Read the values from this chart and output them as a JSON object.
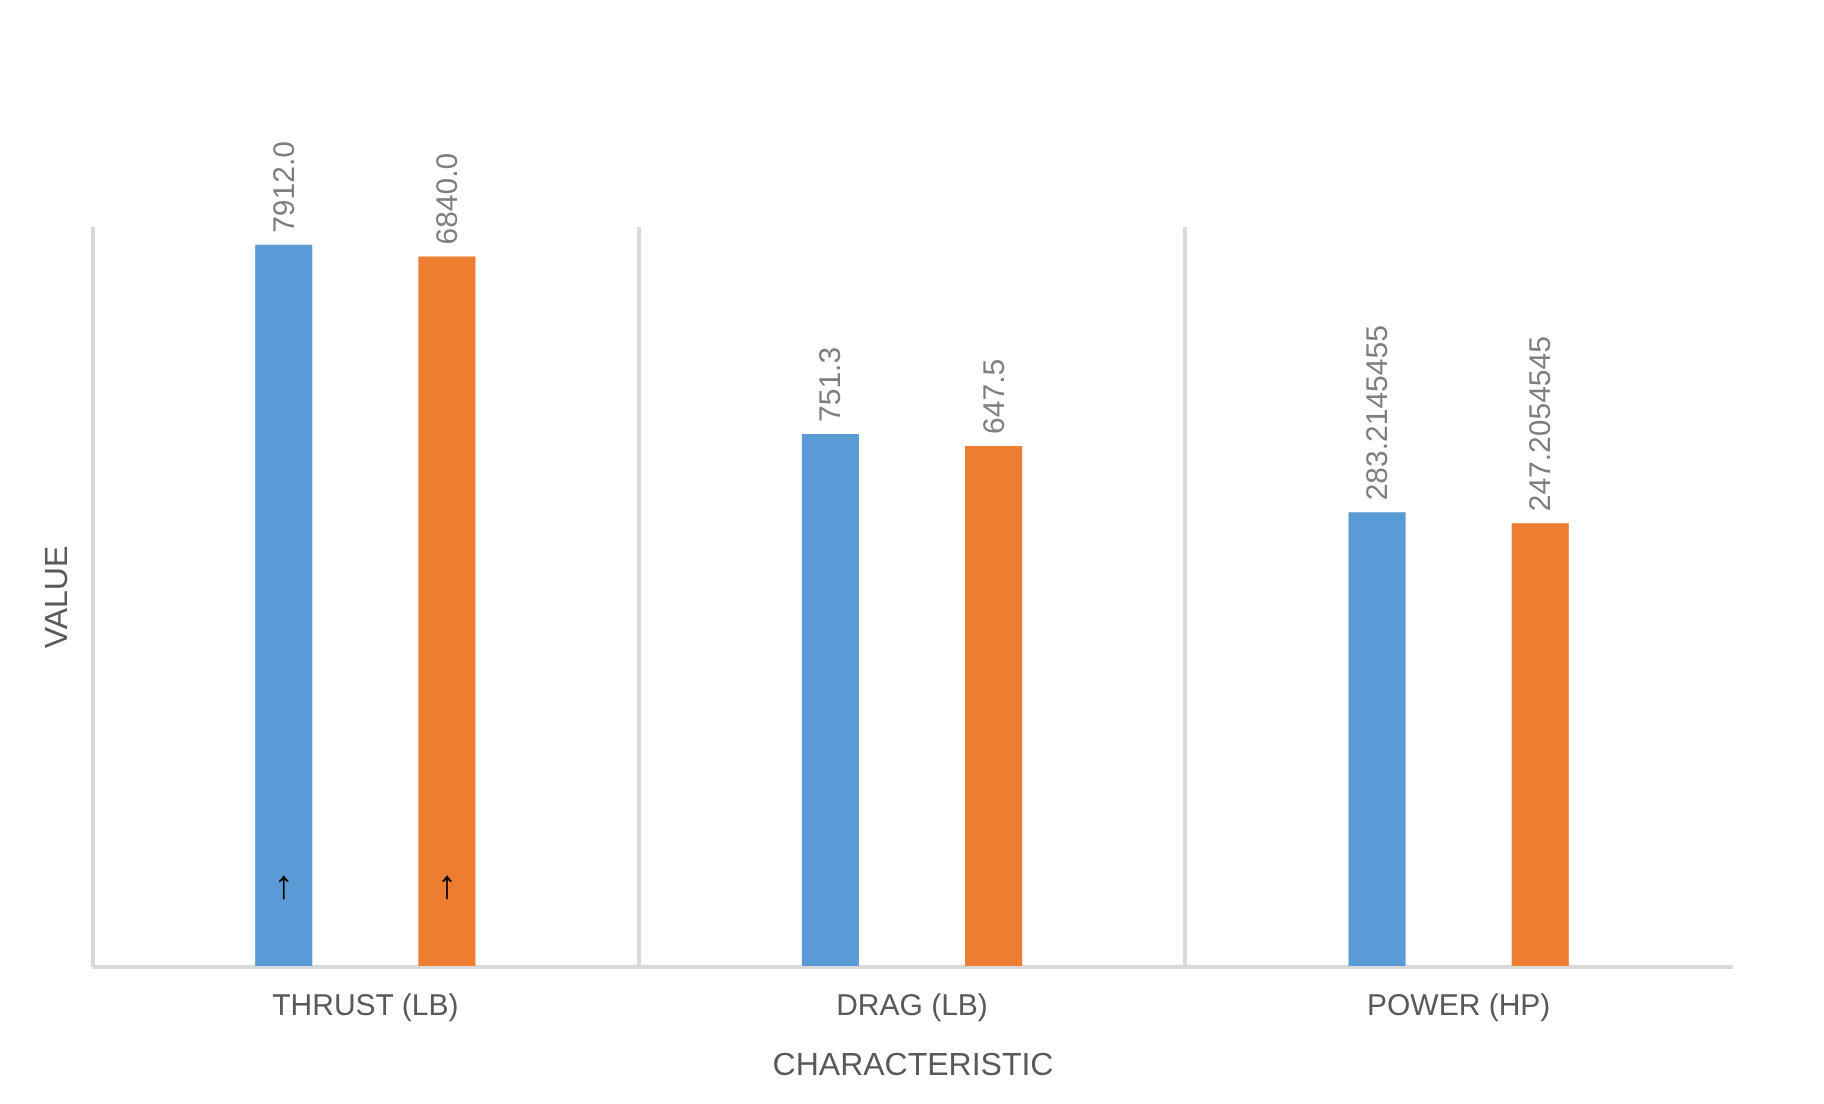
{
  "chart_data": {
    "type": "bar",
    "xlabel": "CHARACTERISTIC",
    "ylabel": "VALUE",
    "categories": [
      "THRUST (LB)",
      "DRAG (LB)",
      "POWER (HP)"
    ],
    "series": [
      {
        "color": "#5b9bd5",
        "values": [
          7912.0,
          751.3,
          283.2145455
        ],
        "value_labels": [
          "7912.0",
          "751.3",
          "283.2145455"
        ]
      },
      {
        "color": "#ed7d31",
        "values": [
          6840.0,
          647.5,
          247.2054545
        ],
        "value_labels": [
          "6840.0",
          "647.5",
          "247.2054545"
        ]
      }
    ],
    "log": true,
    "ylim": [
      1,
      10000
    ],
    "tick_labels": "x",
    "grid": "x",
    "legend": false,
    "annotations": [
      "↑",
      "↑"
    ]
  }
}
